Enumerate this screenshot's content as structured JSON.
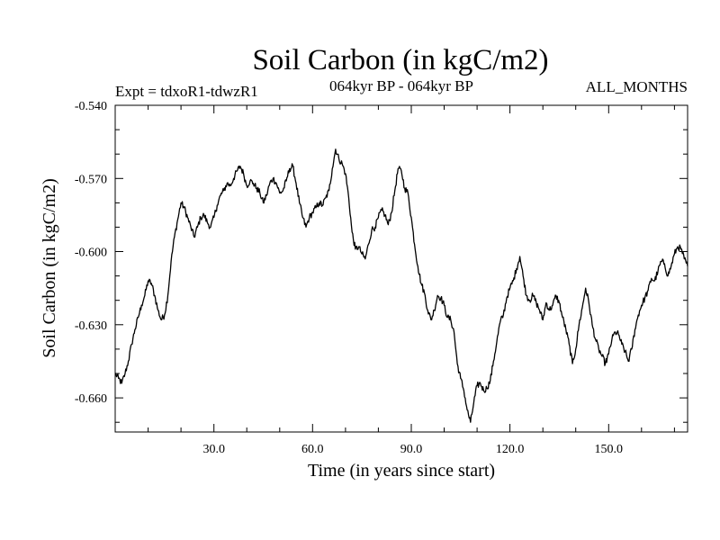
{
  "chart_data": {
    "type": "line",
    "title": "Soil Carbon (in kgC/m2)",
    "expt_label": "Expt = tdxoR1-tdwzR1",
    "period_label": "064kyr BP - 064kyr BP",
    "months_label": "ALL_MONTHS",
    "xlabel": "Time (in years since start)",
    "ylabel": "Soil Carbon (in kgC/m2)",
    "xlim": [
      0,
      174
    ],
    "ylim": [
      -0.674,
      -0.54
    ],
    "xticks": [
      30,
      60,
      90,
      120,
      150
    ],
    "xtick_labels": [
      "30.0",
      "60.0",
      "90.0",
      "120.0",
      "150.0"
    ],
    "yticks": [
      -0.54,
      -0.57,
      -0.6,
      -0.63,
      -0.66
    ],
    "ytick_labels": [
      "-0.540",
      "-0.570",
      "-0.600",
      "-0.630",
      "-0.660"
    ],
    "series": [
      {
        "name": "Soil Carbon",
        "x": [
          0,
          1,
          2,
          3,
          4,
          5,
          6,
          7,
          8,
          9,
          10,
          11,
          12,
          13,
          14,
          15,
          16,
          17,
          18,
          19,
          20,
          21,
          22,
          23,
          24,
          25,
          26,
          27,
          28,
          29,
          30,
          31,
          32,
          33,
          34,
          35,
          36,
          37,
          38,
          39,
          40,
          41,
          42,
          43,
          44,
          45,
          46,
          47,
          48,
          49,
          50,
          51,
          52,
          53,
          54,
          55,
          56,
          57,
          58,
          59,
          60,
          61,
          62,
          63,
          64,
          65,
          66,
          67,
          68,
          69,
          70,
          71,
          72,
          73,
          74,
          75,
          76,
          77,
          78,
          79,
          80,
          81,
          82,
          83,
          84,
          85,
          86,
          87,
          88,
          89,
          90,
          91,
          92,
          93,
          94,
          95,
          96,
          97,
          98,
          99,
          100,
          101,
          102,
          103,
          104,
          105,
          106,
          107,
          108,
          109,
          110,
          111,
          112,
          113,
          114,
          115,
          116,
          117,
          118,
          119,
          120,
          121,
          122,
          123,
          124,
          125,
          126,
          127,
          128,
          129,
          130,
          131,
          132,
          133,
          134,
          135,
          136,
          137,
          138,
          139,
          140,
          141,
          142,
          143,
          144,
          145,
          146,
          147,
          148,
          149,
          150,
          151,
          152,
          153,
          154,
          155,
          156,
          157,
          158,
          159,
          160,
          161,
          162,
          163,
          164,
          165,
          166,
          167,
          168,
          169,
          170,
          171,
          172,
          173,
          174
        ],
        "values": [
          -0.65,
          -0.652,
          -0.654,
          -0.65,
          -0.645,
          -0.638,
          -0.632,
          -0.627,
          -0.622,
          -0.618,
          -0.612,
          -0.613,
          -0.618,
          -0.624,
          -0.628,
          -0.626,
          -0.618,
          -0.604,
          -0.594,
          -0.587,
          -0.58,
          -0.582,
          -0.586,
          -0.59,
          -0.594,
          -0.59,
          -0.586,
          -0.585,
          -0.588,
          -0.59,
          -0.586,
          -0.581,
          -0.577,
          -0.575,
          -0.572,
          -0.573,
          -0.57,
          -0.567,
          -0.565,
          -0.568,
          -0.573,
          -0.571,
          -0.572,
          -0.574,
          -0.576,
          -0.58,
          -0.577,
          -0.572,
          -0.57,
          -0.572,
          -0.576,
          -0.575,
          -0.571,
          -0.566,
          -0.565,
          -0.572,
          -0.58,
          -0.586,
          -0.59,
          -0.586,
          -0.584,
          -0.582,
          -0.58,
          -0.581,
          -0.578,
          -0.575,
          -0.566,
          -0.558,
          -0.562,
          -0.564,
          -0.568,
          -0.578,
          -0.592,
          -0.599,
          -0.598,
          -0.601,
          -0.603,
          -0.597,
          -0.591,
          -0.59,
          -0.586,
          -0.583,
          -0.585,
          -0.589,
          -0.584,
          -0.575,
          -0.566,
          -0.567,
          -0.574,
          -0.576,
          -0.586,
          -0.597,
          -0.606,
          -0.613,
          -0.617,
          -0.624,
          -0.628,
          -0.624,
          -0.618,
          -0.619,
          -0.622,
          -0.627,
          -0.628,
          -0.633,
          -0.646,
          -0.652,
          -0.657,
          -0.665,
          -0.67,
          -0.662,
          -0.655,
          -0.654,
          -0.657,
          -0.656,
          -0.653,
          -0.645,
          -0.637,
          -0.629,
          -0.626,
          -0.619,
          -0.615,
          -0.612,
          -0.607,
          -0.602,
          -0.61,
          -0.618,
          -0.62,
          -0.618,
          -0.621,
          -0.624,
          -0.628,
          -0.621,
          -0.624,
          -0.622,
          -0.618,
          -0.621,
          -0.627,
          -0.632,
          -0.638,
          -0.646,
          -0.64,
          -0.63,
          -0.623,
          -0.615,
          -0.621,
          -0.63,
          -0.636,
          -0.64,
          -0.643,
          -0.646,
          -0.642,
          -0.636,
          -0.633,
          -0.634,
          -0.638,
          -0.641,
          -0.645,
          -0.64,
          -0.632,
          -0.626,
          -0.622,
          -0.619,
          -0.616,
          -0.611,
          -0.612,
          -0.608,
          -0.604,
          -0.605,
          -0.61,
          -0.606,
          -0.601,
          -0.598,
          -0.599,
          -0.603,
          -0.606
        ]
      }
    ]
  }
}
